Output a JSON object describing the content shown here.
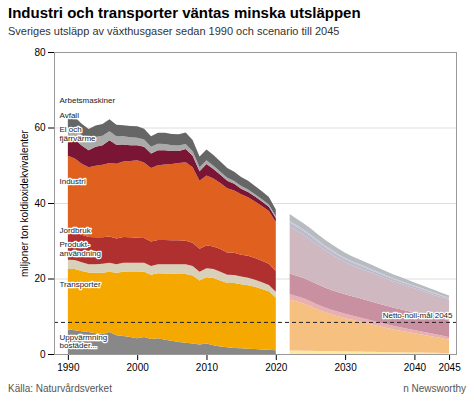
{
  "chart_data": {
    "type": "area",
    "stacked": true,
    "title": "Industri och transporter väntas minska utsläppen",
    "subtitle": "Sveriges utsläpp av växthusgaser sedan 1990 och scenario till 2045",
    "ylabel": "miljoner ton koldioxidekvivalenter",
    "source": "Källa: Naturvårdsverket",
    "credit": "n Newsworthy",
    "x": [
      1990,
      1991,
      1992,
      1993,
      1994,
      1995,
      1996,
      1997,
      1998,
      1999,
      2000,
      2001,
      2002,
      2003,
      2004,
      2005,
      2006,
      2007,
      2008,
      2009,
      2010,
      2011,
      2012,
      2013,
      2014,
      2015,
      2016,
      2017,
      2018,
      2019,
      2020
    ],
    "future_x": [
      2022,
      2023,
      2024,
      2025,
      2026,
      2027,
      2028,
      2029,
      2030,
      2031,
      2032,
      2033,
      2034,
      2035,
      2036,
      2037,
      2038,
      2039,
      2040,
      2041,
      2042,
      2043,
      2044,
      2045
    ],
    "xlim": [
      1988,
      2046
    ],
    "xticks": [
      1990,
      2000,
      2010,
      2020,
      2030,
      2040,
      2045
    ],
    "ylim": [
      0,
      80
    ],
    "yticks": [
      0,
      20,
      40,
      60,
      80
    ],
    "grid": true,
    "reference_line": {
      "y": 8.5,
      "label": "Netto-noll-mål 2045",
      "line_style": "dashed",
      "color": "#222222"
    },
    "series": [
      {
        "name": "Uppvärmning\nbostäder...",
        "color": "#888888",
        "future_color": "#ffe8a0",
        "label_y": 3.5,
        "values": [
          6.5,
          6.3,
          6.0,
          5.8,
          5.5,
          5.3,
          5.8,
          5.0,
          4.8,
          4.5,
          4.2,
          4.5,
          4.0,
          4.2,
          3.8,
          3.5,
          3.2,
          3.0,
          2.8,
          2.5,
          2.8,
          2.3,
          2.0,
          1.8,
          1.6,
          1.5,
          1.4,
          1.3,
          1.2,
          1.1,
          1.0
        ],
        "future_values": [
          0.95,
          0.9,
          0.88,
          0.85,
          0.82,
          0.8,
          0.77,
          0.74,
          0.7,
          0.67,
          0.64,
          0.61,
          0.58,
          0.55,
          0.52,
          0.49,
          0.46,
          0.43,
          0.4,
          0.37,
          0.34,
          0.31,
          0.28,
          0.25
        ]
      },
      {
        "name": "Transporter",
        "color": "#f5a800",
        "future_color": "#f5c080",
        "label_y": 18.5,
        "values": [
          16.0,
          16.2,
          16.0,
          15.8,
          16.0,
          16.2,
          16.0,
          16.5,
          17.0,
          17.2,
          17.5,
          17.3,
          17.0,
          17.2,
          17.5,
          17.8,
          18.0,
          18.2,
          18.0,
          17.0,
          17.5,
          17.8,
          17.5,
          17.0,
          17.2,
          17.0,
          16.8,
          16.5,
          16.0,
          15.5,
          14.0
        ],
        "future_values": [
          13.5,
          13.0,
          12.5,
          11.8,
          11.0,
          10.3,
          9.7,
          9.2,
          8.8,
          8.4,
          8.0,
          7.6,
          7.2,
          6.8,
          6.4,
          6.0,
          5.7,
          5.4,
          5.1,
          4.8,
          4.5,
          4.2,
          3.9,
          3.5
        ]
      },
      {
        "name": "Produkt-\nanvändning",
        "color": "#d8d0b8",
        "future_color": "#e8b0b0",
        "label_y": 28.0,
        "values": [
          2.5,
          2.4,
          2.3,
          2.2,
          2.3,
          2.4,
          2.4,
          2.3,
          2.4,
          2.5,
          2.5,
          2.4,
          2.3,
          2.4,
          2.5,
          2.5,
          2.6,
          2.6,
          2.5,
          2.3,
          2.4,
          2.4,
          2.3,
          2.2,
          2.1,
          2.0,
          2.0,
          1.9,
          1.8,
          1.7,
          1.5
        ],
        "future_values": [
          1.45,
          1.42,
          1.38,
          1.35,
          1.32,
          1.28,
          1.25,
          1.22,
          1.18,
          1.15,
          1.12,
          1.08,
          1.05,
          1.02,
          0.98,
          0.95,
          0.92,
          0.88,
          0.85,
          0.82,
          0.78,
          0.75,
          0.72,
          0.7
        ]
      },
      {
        "name": "Jordbruk",
        "color": "#b03030",
        "future_color": "#c890a0",
        "label_y": 33.0,
        "values": [
          7.5,
          7.4,
          7.3,
          7.2,
          7.1,
          7.0,
          6.9,
          6.8,
          6.8,
          6.7,
          6.6,
          6.5,
          6.5,
          6.4,
          6.4,
          6.3,
          6.3,
          6.2,
          6.2,
          6.1,
          6.1,
          6.0,
          6.0,
          5.9,
          5.9,
          5.8,
          5.8,
          5.7,
          5.7,
          5.6,
          5.5
        ],
        "future_values": [
          5.45,
          5.42,
          5.38,
          5.35,
          5.32,
          5.28,
          5.24,
          5.2,
          5.15,
          5.1,
          5.05,
          5.0,
          4.95,
          4.9,
          4.85,
          4.8,
          4.75,
          4.7,
          4.65,
          4.6,
          4.55,
          4.5,
          4.45,
          4.4
        ]
      },
      {
        "name": "Industri",
        "color": "#e06020",
        "future_color": "#d0b8c0",
        "label_y": 46.0,
        "values": [
          20.0,
          19.5,
          18.8,
          18.5,
          19.0,
          19.2,
          19.5,
          19.8,
          20.0,
          20.2,
          20.5,
          20.0,
          19.5,
          19.8,
          20.0,
          20.2,
          20.5,
          20.8,
          20.0,
          18.0,
          18.5,
          18.0,
          17.5,
          17.0,
          16.5,
          16.0,
          15.5,
          15.0,
          14.5,
          14.0,
          13.0
        ],
        "future_values": [
          12.5,
          12.0,
          11.5,
          11.0,
          10.5,
          10.0,
          9.5,
          9.0,
          8.5,
          8.2,
          8.0,
          7.8,
          7.6,
          7.4,
          7.2,
          7.0,
          6.8,
          6.6,
          6.4,
          6.2,
          6.0,
          5.8,
          5.6,
          5.5
        ]
      },
      {
        "name": "El och\nfjärrvärme",
        "color": "#7a1535",
        "future_color": "#b8bcd0",
        "label_y": 58.5,
        "values": [
          4.5,
          5.0,
          4.8,
          4.5,
          5.0,
          5.2,
          6.0,
          5.0,
          4.5,
          4.2,
          4.0,
          4.2,
          3.8,
          4.0,
          3.8,
          3.5,
          3.2,
          3.5,
          3.0,
          2.5,
          3.0,
          2.5,
          2.2,
          2.0,
          1.8,
          1.5,
          1.4,
          1.3,
          1.2,
          1.1,
          1.0
        ],
        "future_values": [
          0.98,
          0.95,
          0.92,
          0.9,
          0.87,
          0.84,
          0.82,
          0.79,
          0.76,
          0.73,
          0.7,
          0.68,
          0.65,
          0.62,
          0.6,
          0.57,
          0.54,
          0.52,
          0.49,
          0.47,
          0.44,
          0.42,
          0.39,
          0.37
        ]
      },
      {
        "name": "Avfall",
        "color": "#aaaaaa",
        "future_color": "#c8c4cc",
        "label_y": 63.5,
        "values": [
          3.0,
          2.9,
          2.8,
          2.7,
          2.6,
          2.5,
          2.4,
          2.3,
          2.2,
          2.1,
          2.0,
          1.9,
          1.8,
          1.7,
          1.6,
          1.5,
          1.4,
          1.3,
          1.2,
          1.1,
          1.0,
          0.9,
          0.8,
          0.8,
          0.7,
          0.7,
          0.7,
          0.6,
          0.6,
          0.6,
          0.5
        ],
        "future_values": [
          0.48,
          0.46,
          0.44,
          0.43,
          0.41,
          0.4,
          0.38,
          0.37,
          0.35,
          0.34,
          0.33,
          0.31,
          0.3,
          0.29,
          0.27,
          0.26,
          0.25,
          0.24,
          0.22,
          0.21,
          0.2,
          0.19,
          0.18,
          0.17
        ]
      },
      {
        "name": "Arbetsmaskiner",
        "color": "#666666",
        "future_color": "#b8bcc0",
        "label_y": 67.5,
        "values": [
          3.0,
          3.1,
          3.0,
          2.9,
          3.0,
          3.1,
          3.2,
          3.0,
          2.9,
          3.0,
          3.0,
          2.9,
          2.8,
          2.9,
          3.0,
          3.0,
          3.0,
          3.1,
          3.0,
          2.8,
          2.9,
          2.8,
          2.7,
          2.6,
          2.5,
          2.4,
          2.3,
          2.2,
          2.1,
          2.0,
          1.8
        ],
        "future_values": [
          1.75,
          1.7,
          1.65,
          1.6,
          1.55,
          1.5,
          1.45,
          1.4,
          1.35,
          1.3,
          1.25,
          1.2,
          1.15,
          1.1,
          1.05,
          1.0,
          0.95,
          0.9,
          0.85,
          0.8,
          0.75,
          0.7,
          0.65,
          0.6
        ]
      }
    ]
  }
}
